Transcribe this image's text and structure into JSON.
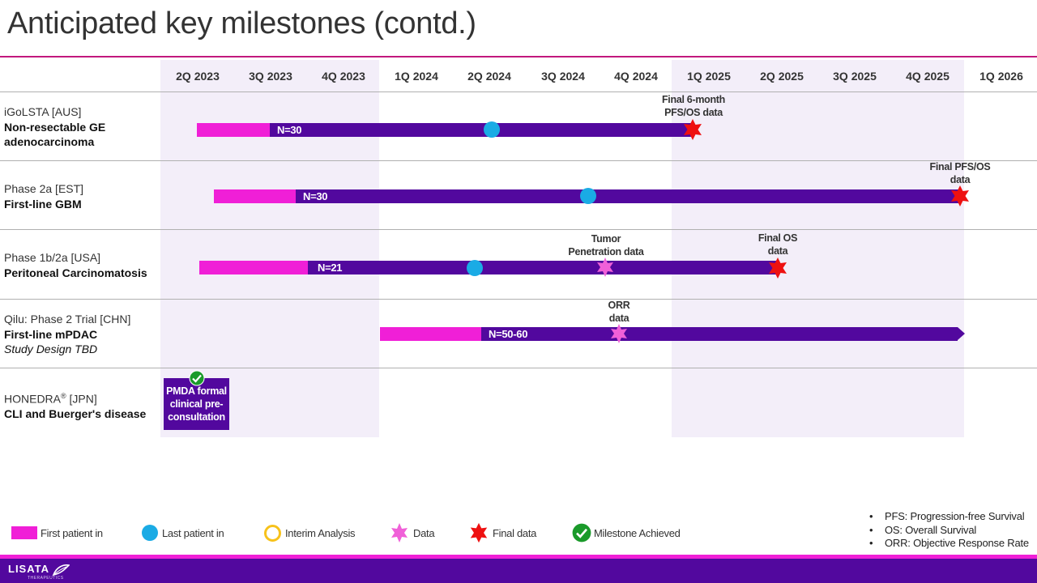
{
  "title": "Anticipated key milestones (contd.)",
  "quarters": [
    "2Q 2023",
    "3Q 2023",
    "4Q 2023",
    "1Q 2024",
    "2Q 2024",
    "3Q 2024",
    "4Q 2024",
    "1Q 2025",
    "2Q 2025",
    "3Q 2025",
    "4Q 2025",
    "1Q 2026"
  ],
  "rows": [
    {
      "l1": "iGoLSTA [AUS]",
      "l2": "Non-resectable GE",
      "l3": "adenocarcinoma",
      "n": "N=30",
      "final_note": "Final 6-month\nPFS/OS data"
    },
    {
      "l1": "Phase 2a [EST]",
      "l2": "First-line GBM",
      "n": "N=30",
      "final_note": "Final PFS/OS\ndata"
    },
    {
      "l1": "Phase 1b/2a [USA]",
      "l2": "Peritoneal Carcinomatosis",
      "n": "N=21",
      "data_note": "Tumor\nPenetration data",
      "final_note": "Final OS\ndata"
    },
    {
      "l1": "Qilu: Phase 2 Trial [CHN]",
      "l2": "First-line mPDAC",
      "l3": "Study Design TBD",
      "n": "N=50-60",
      "data_note": "ORR\ndata"
    },
    {
      "l1": "HONEDRA",
      "l1_sup": "®",
      "l1_suffix": " [JPN]",
      "l2": "CLI and Buerger's disease",
      "box": "PMDA formal\nclinical pre-\nconsultation"
    }
  ],
  "legend": {
    "first_patient": "First patient in",
    "last_patient": "Last patient in",
    "interim": "Interim Analysis",
    "data": "Data",
    "final": "Final data",
    "achieved": "Milestone Achieved"
  },
  "abbreviations": [
    "PFS: Progression-free Survival",
    "OS: Overall Survival",
    "ORR: Objective Response Rate"
  ],
  "logo": "LISATA",
  "logo_sub": "THERAPEUTICS",
  "colors": {
    "accent_pink": "#f01fd7",
    "purple": "#52089e",
    "blue_dot": "#1aabe5",
    "shade": "#f3eef9",
    "final_red": "#ee1111",
    "data_pink": "#f060d8",
    "check_green": "#1a9a2a",
    "interim_yellow": "#f7c21b"
  }
}
